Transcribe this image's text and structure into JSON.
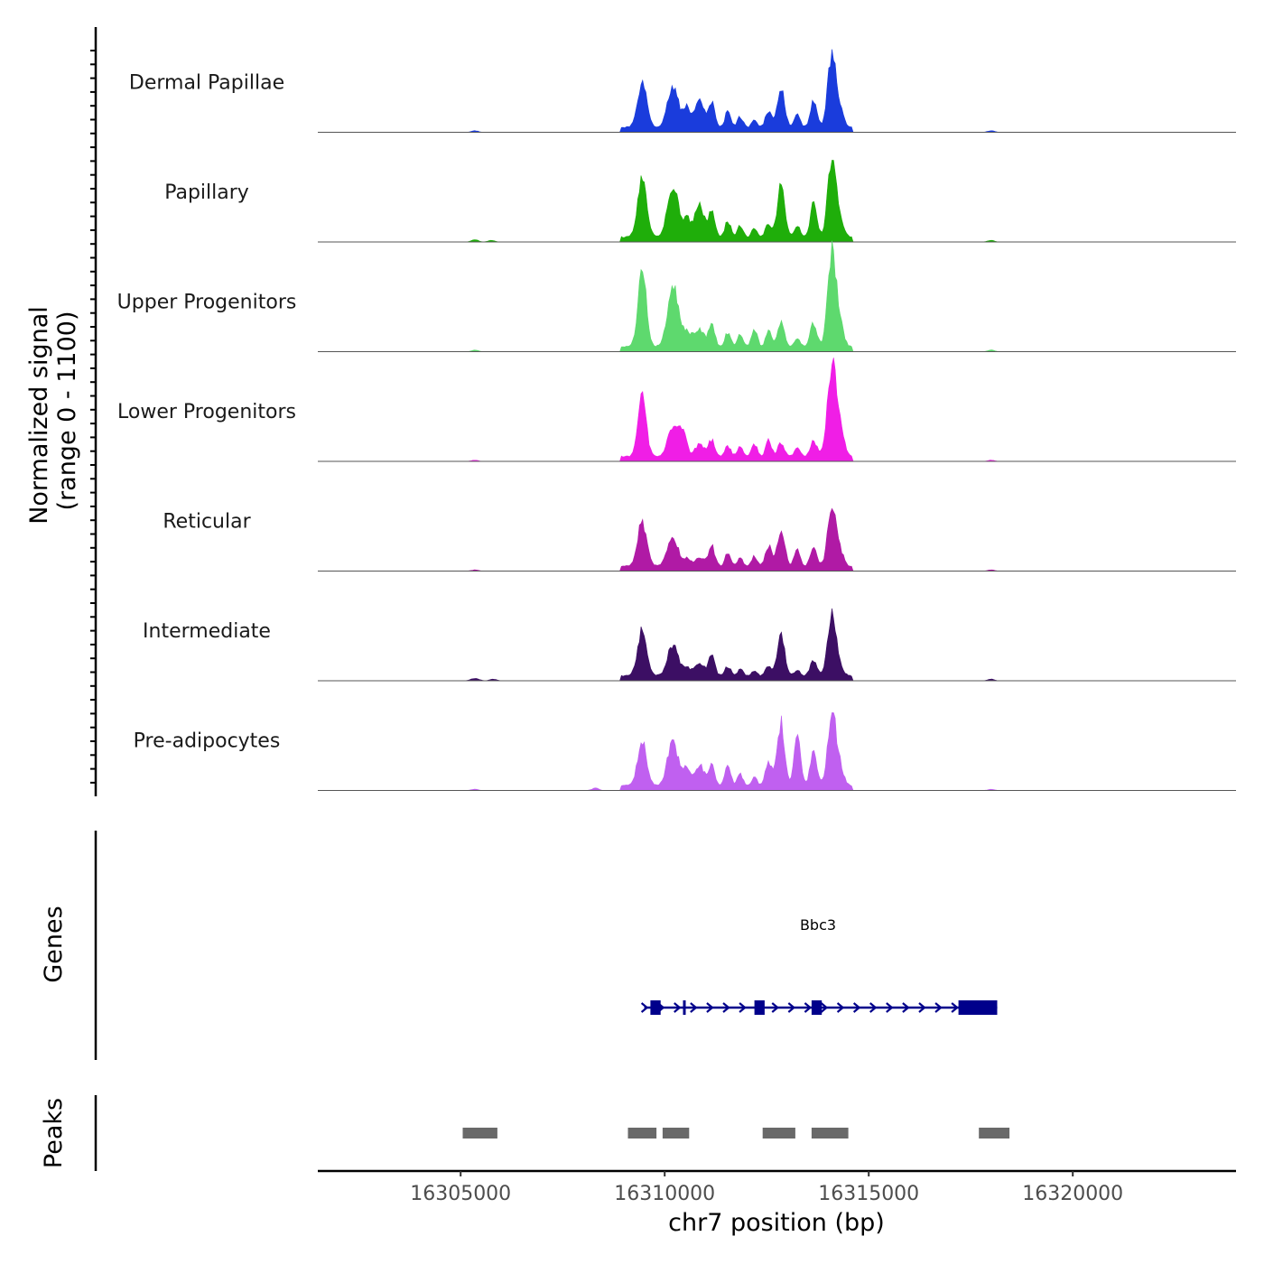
{
  "chart_data": {
    "type": "area",
    "title": "",
    "ylabel": "Normalized signal",
    "ylabel_range": "(range 0 - 1100)",
    "ylim": [
      0,
      1100
    ],
    "xlabel": "chr7 position (bp)",
    "xlim": [
      16301500,
      16324000
    ],
    "x_ticks": [
      16305000,
      16310000,
      16315000,
      16320000
    ],
    "x_tick_labels": [
      "16305000",
      "16310000",
      "16315000",
      "16320000"
    ],
    "tracks": [
      {
        "name": "Dermal Papillae",
        "color": "#1a3cdc",
        "peaks": [
          {
            "pos": 16309450,
            "h": 0.55,
            "w": 110
          },
          {
            "pos": 16310200,
            "h": 0.52,
            "w": 130
          },
          {
            "pos": 16310550,
            "h": 0.24,
            "w": 90
          },
          {
            "pos": 16310850,
            "h": 0.32,
            "w": 110
          },
          {
            "pos": 16311150,
            "h": 0.3,
            "w": 80
          },
          {
            "pos": 16311550,
            "h": 0.2,
            "w": 70
          },
          {
            "pos": 16311850,
            "h": 0.13,
            "w": 70
          },
          {
            "pos": 16312200,
            "h": 0.11,
            "w": 60
          },
          {
            "pos": 16312550,
            "h": 0.2,
            "w": 80
          },
          {
            "pos": 16312850,
            "h": 0.48,
            "w": 90
          },
          {
            "pos": 16313250,
            "h": 0.16,
            "w": 70
          },
          {
            "pos": 16313650,
            "h": 0.32,
            "w": 80
          },
          {
            "pos": 16314100,
            "h": 0.92,
            "w": 100
          },
          {
            "pos": 16314300,
            "h": 0.2,
            "w": 90
          },
          {
            "pos": 16305350,
            "h": 0.02,
            "w": 80
          },
          {
            "pos": 16318000,
            "h": 0.02,
            "w": 80
          }
        ]
      },
      {
        "name": "Papillary",
        "color": "#1fae0a",
        "peaks": [
          {
            "pos": 16309450,
            "h": 0.7,
            "w": 110
          },
          {
            "pos": 16310200,
            "h": 0.65,
            "w": 130
          },
          {
            "pos": 16310550,
            "h": 0.22,
            "w": 90
          },
          {
            "pos": 16310850,
            "h": 0.4,
            "w": 110
          },
          {
            "pos": 16311150,
            "h": 0.3,
            "w": 80
          },
          {
            "pos": 16311550,
            "h": 0.2,
            "w": 70
          },
          {
            "pos": 16311850,
            "h": 0.14,
            "w": 70
          },
          {
            "pos": 16312200,
            "h": 0.12,
            "w": 60
          },
          {
            "pos": 16312550,
            "h": 0.16,
            "w": 80
          },
          {
            "pos": 16312850,
            "h": 0.64,
            "w": 90
          },
          {
            "pos": 16313250,
            "h": 0.14,
            "w": 70
          },
          {
            "pos": 16313650,
            "h": 0.42,
            "w": 80
          },
          {
            "pos": 16314100,
            "h": 1.0,
            "w": 100
          },
          {
            "pos": 16314300,
            "h": 0.2,
            "w": 90
          },
          {
            "pos": 16305350,
            "h": 0.03,
            "w": 80
          },
          {
            "pos": 16305750,
            "h": 0.02,
            "w": 80
          },
          {
            "pos": 16318000,
            "h": 0.02,
            "w": 80
          }
        ]
      },
      {
        "name": "Upper Progenitors",
        "color": "#5ed96e",
        "peaks": [
          {
            "pos": 16309450,
            "h": 1.0,
            "w": 100
          },
          {
            "pos": 16310200,
            "h": 0.75,
            "w": 130
          },
          {
            "pos": 16310550,
            "h": 0.18,
            "w": 110
          },
          {
            "pos": 16310850,
            "h": 0.22,
            "w": 110
          },
          {
            "pos": 16311150,
            "h": 0.26,
            "w": 80
          },
          {
            "pos": 16311550,
            "h": 0.18,
            "w": 70
          },
          {
            "pos": 16311850,
            "h": 0.15,
            "w": 70
          },
          {
            "pos": 16312200,
            "h": 0.22,
            "w": 70
          },
          {
            "pos": 16312550,
            "h": 0.2,
            "w": 70
          },
          {
            "pos": 16312850,
            "h": 0.3,
            "w": 80
          },
          {
            "pos": 16313250,
            "h": 0.12,
            "w": 70
          },
          {
            "pos": 16313650,
            "h": 0.3,
            "w": 80
          },
          {
            "pos": 16314100,
            "h": 1.18,
            "w": 100
          },
          {
            "pos": 16314300,
            "h": 0.25,
            "w": 90
          },
          {
            "pos": 16305350,
            "h": 0.02,
            "w": 80
          },
          {
            "pos": 16318000,
            "h": 0.02,
            "w": 80
          }
        ]
      },
      {
        "name": "Lower Progenitors",
        "color": "#f01ee6",
        "peaks": [
          {
            "pos": 16309450,
            "h": 0.72,
            "w": 100
          },
          {
            "pos": 16310200,
            "h": 0.38,
            "w": 120
          },
          {
            "pos": 16310450,
            "h": 0.3,
            "w": 90
          },
          {
            "pos": 16310850,
            "h": 0.15,
            "w": 110
          },
          {
            "pos": 16311150,
            "h": 0.2,
            "w": 80
          },
          {
            "pos": 16311550,
            "h": 0.13,
            "w": 70
          },
          {
            "pos": 16311850,
            "h": 0.12,
            "w": 70
          },
          {
            "pos": 16312200,
            "h": 0.15,
            "w": 70
          },
          {
            "pos": 16312550,
            "h": 0.2,
            "w": 70
          },
          {
            "pos": 16312850,
            "h": 0.17,
            "w": 80
          },
          {
            "pos": 16313250,
            "h": 0.1,
            "w": 70
          },
          {
            "pos": 16313650,
            "h": 0.2,
            "w": 80
          },
          {
            "pos": 16314100,
            "h": 1.1,
            "w": 110
          },
          {
            "pos": 16314300,
            "h": 0.3,
            "w": 100
          },
          {
            "pos": 16305350,
            "h": 0.015,
            "w": 80
          },
          {
            "pos": 16318000,
            "h": 0.015,
            "w": 80
          }
        ]
      },
      {
        "name": "Reticular",
        "color": "#b01aa5",
        "peaks": [
          {
            "pos": 16309450,
            "h": 0.55,
            "w": 110
          },
          {
            "pos": 16310200,
            "h": 0.35,
            "w": 130
          },
          {
            "pos": 16310550,
            "h": 0.1,
            "w": 90
          },
          {
            "pos": 16310850,
            "h": 0.1,
            "w": 110
          },
          {
            "pos": 16311150,
            "h": 0.25,
            "w": 80
          },
          {
            "pos": 16311550,
            "h": 0.16,
            "w": 70
          },
          {
            "pos": 16311850,
            "h": 0.1,
            "w": 70
          },
          {
            "pos": 16312200,
            "h": 0.12,
            "w": 70
          },
          {
            "pos": 16312550,
            "h": 0.25,
            "w": 80
          },
          {
            "pos": 16312850,
            "h": 0.45,
            "w": 90
          },
          {
            "pos": 16313250,
            "h": 0.22,
            "w": 70
          },
          {
            "pos": 16313650,
            "h": 0.22,
            "w": 80
          },
          {
            "pos": 16314100,
            "h": 0.78,
            "w": 100
          },
          {
            "pos": 16314300,
            "h": 0.16,
            "w": 90
          },
          {
            "pos": 16305350,
            "h": 0.015,
            "w": 80
          },
          {
            "pos": 16318000,
            "h": 0.015,
            "w": 80
          }
        ]
      },
      {
        "name": "Intermediate",
        "color": "#3c0f64",
        "peaks": [
          {
            "pos": 16309450,
            "h": 0.56,
            "w": 110
          },
          {
            "pos": 16310200,
            "h": 0.38,
            "w": 130
          },
          {
            "pos": 16310550,
            "h": 0.1,
            "w": 90
          },
          {
            "pos": 16310850,
            "h": 0.16,
            "w": 110
          },
          {
            "pos": 16311150,
            "h": 0.24,
            "w": 80
          },
          {
            "pos": 16311550,
            "h": 0.12,
            "w": 70
          },
          {
            "pos": 16311850,
            "h": 0.08,
            "w": 70
          },
          {
            "pos": 16312200,
            "h": 0.07,
            "w": 60
          },
          {
            "pos": 16312550,
            "h": 0.12,
            "w": 80
          },
          {
            "pos": 16312850,
            "h": 0.52,
            "w": 90
          },
          {
            "pos": 16313250,
            "h": 0.08,
            "w": 70
          },
          {
            "pos": 16313650,
            "h": 0.2,
            "w": 80
          },
          {
            "pos": 16314100,
            "h": 0.78,
            "w": 100
          },
          {
            "pos": 16314300,
            "h": 0.08,
            "w": 90
          },
          {
            "pos": 16305350,
            "h": 0.03,
            "w": 100
          },
          {
            "pos": 16305800,
            "h": 0.02,
            "w": 80
          },
          {
            "pos": 16318000,
            "h": 0.02,
            "w": 80
          }
        ]
      },
      {
        "name": "Pre-adipocytes",
        "color": "#c060f0",
        "peaks": [
          {
            "pos": 16309450,
            "h": 0.55,
            "w": 110
          },
          {
            "pos": 16310200,
            "h": 0.55,
            "w": 130
          },
          {
            "pos": 16310550,
            "h": 0.22,
            "w": 90
          },
          {
            "pos": 16310850,
            "h": 0.26,
            "w": 110
          },
          {
            "pos": 16311150,
            "h": 0.24,
            "w": 80
          },
          {
            "pos": 16311550,
            "h": 0.24,
            "w": 70
          },
          {
            "pos": 16311850,
            "h": 0.14,
            "w": 70
          },
          {
            "pos": 16312200,
            "h": 0.12,
            "w": 60
          },
          {
            "pos": 16312550,
            "h": 0.3,
            "w": 80
          },
          {
            "pos": 16312850,
            "h": 0.78,
            "w": 90
          },
          {
            "pos": 16313250,
            "h": 0.58,
            "w": 80
          },
          {
            "pos": 16313650,
            "h": 0.45,
            "w": 80
          },
          {
            "pos": 16314100,
            "h": 0.92,
            "w": 100
          },
          {
            "pos": 16314300,
            "h": 0.2,
            "w": 90
          },
          {
            "pos": 16308300,
            "h": 0.03,
            "w": 80
          },
          {
            "pos": 16305350,
            "h": 0.015,
            "w": 80
          },
          {
            "pos": 16318000,
            "h": 0.015,
            "w": 80
          }
        ]
      }
    ],
    "genes_panel": {
      "label": "Genes",
      "gene_name": "Bbc3",
      "color": "#00008b",
      "start": 16309500,
      "end": 16318150,
      "strand": "+",
      "exons": [
        [
          16309650,
          16309900
        ],
        [
          16310450,
          16310500
        ],
        [
          16312200,
          16312450
        ],
        [
          16313600,
          16313850
        ],
        [
          16317200,
          16318150
        ]
      ]
    },
    "peaks_panel": {
      "label": "Peaks",
      "color": "#696969",
      "regions": [
        [
          16305050,
          16305900
        ],
        [
          16309100,
          16309800
        ],
        [
          16309950,
          16310600
        ],
        [
          16312400,
          16313200
        ],
        [
          16313600,
          16314500
        ],
        [
          16317700,
          16318450
        ]
      ]
    }
  }
}
